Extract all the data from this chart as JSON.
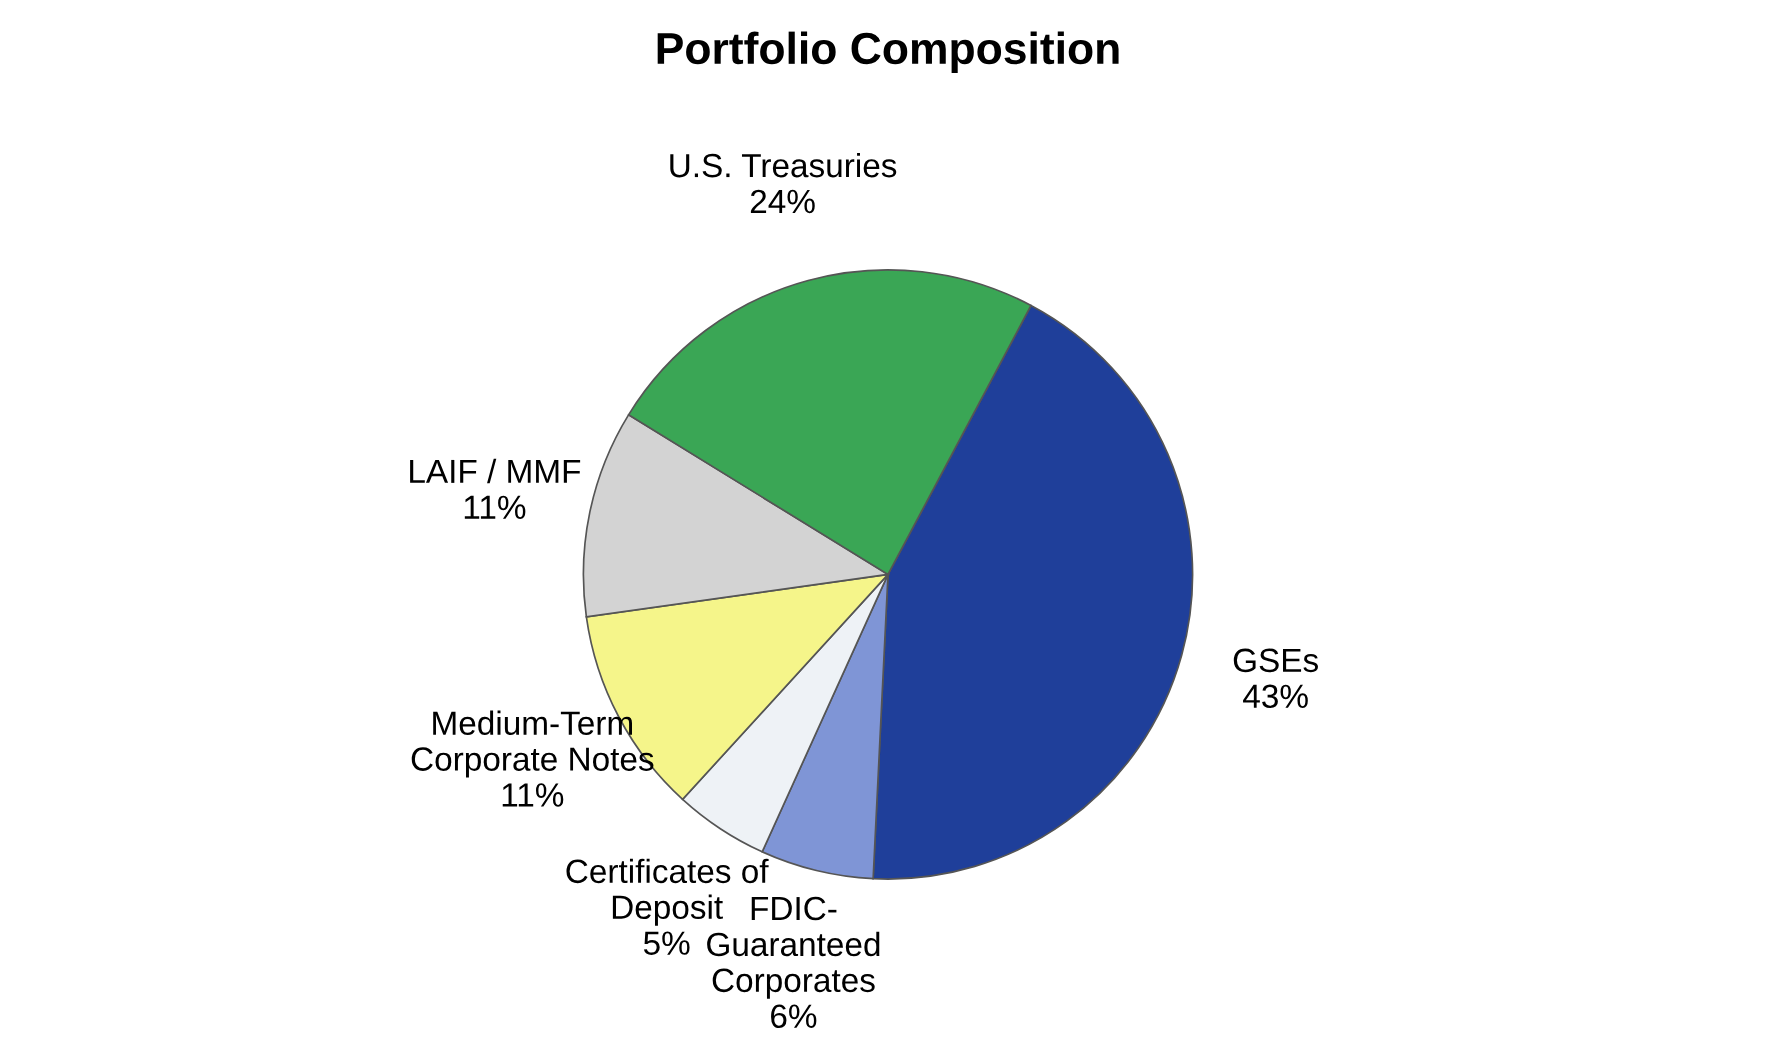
{
  "chart_data": {
    "type": "pie",
    "title": "Portfolio Composition",
    "categories": [
      "GSEs",
      "FDIC-\nGuaranteed\nCorporates",
      "Certificates of\nDeposit",
      "Medium-Term\nCorporate Notes",
      "LAIF / MMF",
      "U.S. Treasuries"
    ],
    "values": [
      43,
      6,
      5,
      11,
      11,
      24
    ],
    "value_labels": [
      "43%",
      "6%",
      "5%",
      "11%",
      "11%",
      "24%"
    ],
    "colors": [
      "#1f3f9a",
      "#7f95d6",
      "#eef2f6",
      "#f5f58a",
      "#d3d3d3",
      "#3aa655"
    ],
    "legend": false
  }
}
